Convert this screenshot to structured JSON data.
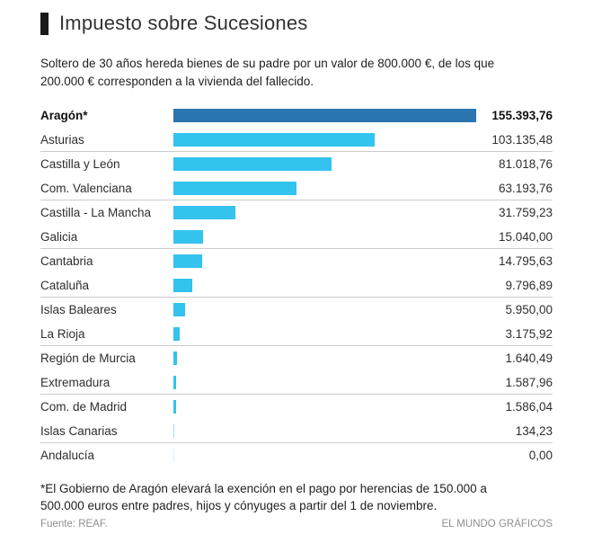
{
  "header": {
    "title": "Impuesto sobre Sucesiones"
  },
  "subtitle": "Soltero de 30 años hereda bienes de su padre por un valor de 800.000 €, de los que\n200.000 € corresponden a la vivienda del fallecido.",
  "chart_data": {
    "type": "bar",
    "orientation": "horizontal",
    "title": "Impuesto sobre Sucesiones",
    "unit": "euros (€)",
    "categories": [
      "Aragón*",
      "Asturias",
      "Castilla y León",
      "Com. Valenciana",
      "Castilla - La Mancha",
      "Galicia",
      "Cantabria",
      "Cataluña",
      "Islas Baleares",
      "La Rioja",
      "Región de Murcia",
      "Extremadura",
      "Com. de Madrid",
      "Islas Canarias",
      "Andalucía"
    ],
    "values": [
      155393.76,
      103135.48,
      81018.76,
      63193.76,
      31759.23,
      15040.0,
      14795.63,
      9796.89,
      5950.0,
      3175.92,
      1640.49,
      1587.96,
      1586.04,
      134.23,
      0.0
    ],
    "value_labels": [
      "155.393,76",
      "103.135,48",
      "81.018,76",
      "63.193,76",
      "31.759,23",
      "15.040,00",
      "14.795,63",
      "9.796,89",
      "5.950,00",
      "3.175,92",
      "1.640,49",
      "1.587,96",
      "1.586,04",
      "134,23",
      "0,00"
    ],
    "xlim": [
      0,
      155393.76
    ],
    "highlight_index": 0,
    "separators_after_rows": [
      2,
      4,
      6,
      8,
      10,
      12,
      14
    ],
    "colors": {
      "highlight_bar": "#2a74b0",
      "bar": "#33c3ee",
      "separator": "#cccccc"
    },
    "grid": false,
    "legend": "none"
  },
  "footnote": "*El Gobierno de Aragón elevará la exención en el pago por herencias de 150.000 a\n500.000 euros entre padres, hijos y cónyuges a partir del 1 de noviembre.",
  "source": "Fuente: REAF.",
  "credit": "EL MUNDO GRÁFICOS"
}
